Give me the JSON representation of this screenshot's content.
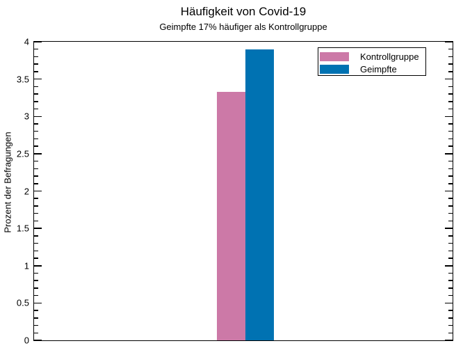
{
  "chart_data": {
    "type": "bar",
    "title": "Häufigkeit von Covid-19",
    "subtitle": "Geimpfte 17% häufiger als Kontrollgruppe",
    "xlabel": "",
    "ylabel": "Prozent der Befragungen",
    "categories": [
      ""
    ],
    "series": [
      {
        "name": "Kontrollgruppe",
        "values": [
          3.33
        ],
        "color": "#CC79A7"
      },
      {
        "name": "Geimpfte",
        "values": [
          3.9
        ],
        "color": "#0072B2"
      }
    ],
    "ylim": [
      0,
      4
    ],
    "y_major_tick_step": 0.5,
    "y_minor_tick_step": 0.1,
    "y_tick_labels": [
      "0",
      "0.5",
      "1",
      "1.5",
      "2",
      "2.5",
      "3",
      "3.5",
      "4"
    ],
    "grid": false,
    "legend_position": "top-right",
    "axis_color": "#000000",
    "background_color": "#ffffff"
  }
}
